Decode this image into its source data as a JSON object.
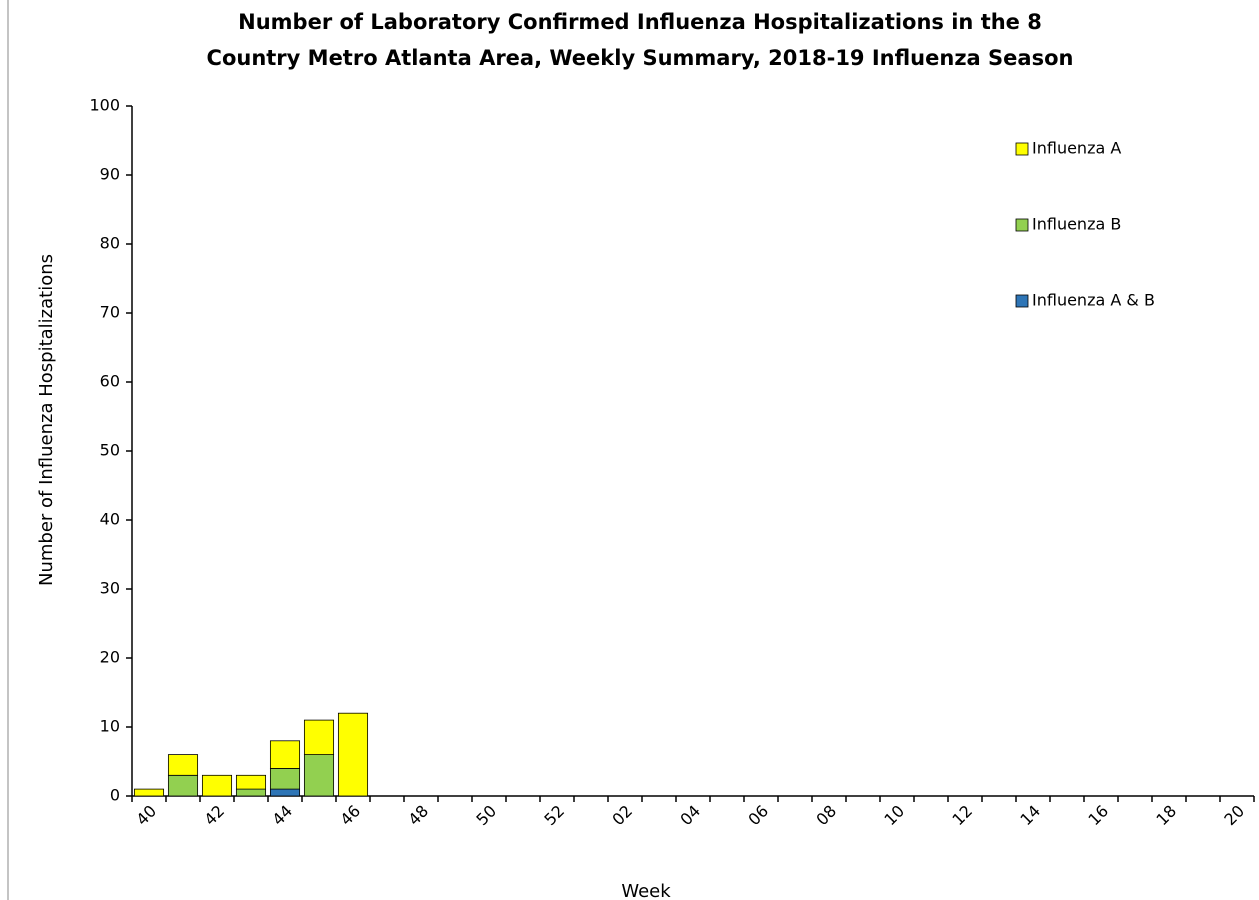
{
  "chart_data": {
    "type": "stacked_bar",
    "title": [
      "Number of Laboratory Confirmed Influenza Hospitalizations in the 8",
      "Country Metro Atlanta Area, Weekly Summary, 2018-19 Influenza Season"
    ],
    "x_label": "Week",
    "y_label": "Number of Influenza Hospitalizations",
    "categories": [
      "40",
      null,
      "42",
      null,
      "44",
      null,
      "46",
      null,
      "48",
      null,
      "50",
      null,
      "52",
      null,
      "02",
      null,
      "04",
      null,
      "06",
      null,
      "08",
      null,
      "10",
      null,
      "12",
      null,
      "14",
      null,
      "16",
      null,
      "18",
      null,
      "20"
    ],
    "series": [
      {
        "name": "Influenza A",
        "color": "#ffff00",
        "values": [
          1,
          3,
          3,
          2,
          4,
          5,
          12,
          null,
          null,
          null,
          null,
          null,
          null,
          null,
          null,
          null,
          null,
          null,
          null,
          null,
          null,
          null,
          null,
          null,
          null,
          null,
          null,
          null,
          null,
          null,
          null,
          null,
          null
        ]
      },
      {
        "name": "Influenza B",
        "color": "#92d050",
        "values": [
          0,
          3,
          0,
          1,
          3,
          6,
          0,
          null,
          null,
          null,
          null,
          null,
          null,
          null,
          null,
          null,
          null,
          null,
          null,
          null,
          null,
          null,
          null,
          null,
          null,
          null,
          null,
          null,
          null,
          null,
          null,
          null,
          null
        ]
      },
      {
        "name": "Influenza A & B",
        "color": "#2e75b6",
        "values": [
          0,
          0,
          0,
          0,
          1,
          0,
          0,
          null,
          null,
          null,
          null,
          null,
          null,
          null,
          null,
          null,
          null,
          null,
          null,
          null,
          null,
          null,
          null,
          null,
          null,
          null,
          null,
          null,
          null,
          null,
          null,
          null,
          null
        ]
      }
    ],
    "ylim": [
      0,
      100
    ],
    "yticks": [
      0,
      10,
      20,
      30,
      40,
      50,
      60,
      70,
      80,
      90,
      100
    ],
    "legend": "top-right"
  }
}
